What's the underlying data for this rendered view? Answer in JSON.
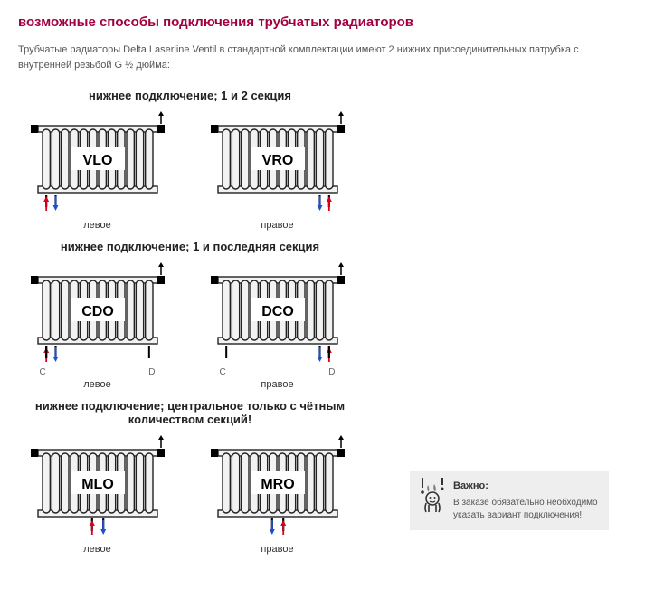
{
  "title": "возможные способы подключения трубчатых радиаторов",
  "title_color": "#a3003f",
  "intro": "Трубчатые радиаторы Delta Laserline Ventil в стандартной комплектации имеют 2 нижних присоединительных патрубка с внутренней резьбой G ½ дюйма:",
  "sections": [
    {
      "heading": "нижнее подключение; 1 и 2 секция",
      "left": {
        "code": "VLO",
        "caption": "левое",
        "pipes": "left",
        "cd": false
      },
      "right": {
        "code": "VRO",
        "caption": "правое",
        "pipes": "right",
        "cd": false
      }
    },
    {
      "heading": "нижнее подключение; 1 и последняя секция",
      "left": {
        "code": "CDO",
        "caption": "левое",
        "pipes": "left",
        "cd": true
      },
      "right": {
        "code": "DCO",
        "caption": "правое",
        "pipes": "right",
        "cd": true
      }
    },
    {
      "heading": "нижнее подключение; центральное только с чётным количеством секций!",
      "left": {
        "code": "MLO",
        "caption": "левое",
        "pipes": "center-left",
        "cd": false
      },
      "right": {
        "code": "MRO",
        "caption": "правое",
        "pipes": "center-right",
        "cd": false
      }
    }
  ],
  "cd_labels": {
    "left": "C",
    "right": "D"
  },
  "note": {
    "title": "Важно:",
    "text": "В заказе обязательно необходимо указать вариант подключения!"
  },
  "colors": {
    "hot": "#d9001b",
    "cold": "#1b4fd9",
    "tube_fill": "#f2f2f2",
    "tube_stroke": "#222222",
    "cap": "#000000",
    "label_bg": "#ffffff"
  },
  "radiator": {
    "tubes": 12,
    "width": 160,
    "height": 120
  }
}
